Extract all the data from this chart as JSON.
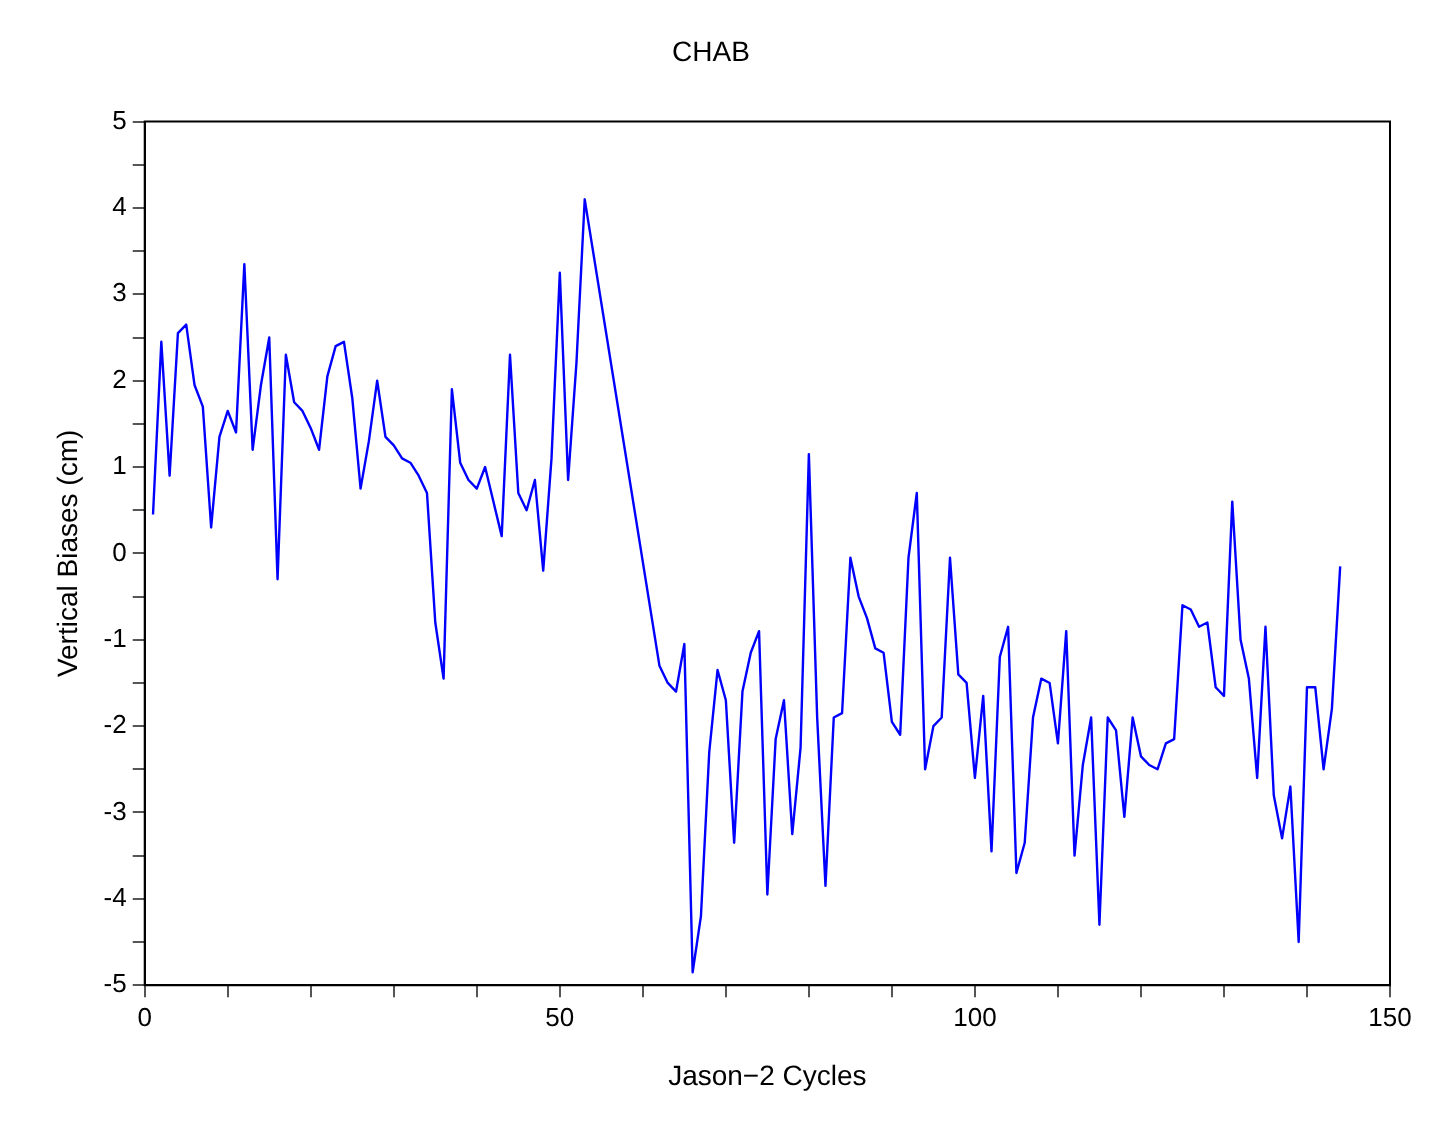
{
  "chart_data": {
    "type": "line",
    "title": "CHAB",
    "xlabel": "Jason−2 Cycles",
    "ylabel": "Vertical Biases (cm)",
    "x": [
      1,
      2,
      3,
      4,
      5,
      6,
      7,
      8,
      9,
      10,
      11,
      12,
      13,
      14,
      15,
      16,
      17,
      18,
      19,
      20,
      21,
      22,
      23,
      24,
      25,
      26,
      27,
      28,
      29,
      30,
      31,
      32,
      33,
      34,
      35,
      36,
      37,
      38,
      39,
      40,
      41,
      42,
      43,
      44,
      45,
      46,
      47,
      48,
      49,
      50,
      51,
      52,
      53,
      62,
      63,
      64,
      65,
      66,
      67,
      68,
      69,
      70,
      71,
      72,
      73,
      74,
      75,
      76,
      77,
      78,
      79,
      80,
      81,
      82,
      83,
      84,
      85,
      86,
      87,
      88,
      89,
      90,
      91,
      92,
      93,
      94,
      95,
      96,
      97,
      98,
      99,
      100,
      101,
      102,
      103,
      104,
      105,
      106,
      107,
      108,
      109,
      110,
      111,
      112,
      113,
      114,
      115,
      116,
      117,
      118,
      119,
      120,
      121,
      122,
      123,
      124,
      125,
      126,
      127,
      128,
      129,
      130,
      131,
      132,
      133,
      134,
      135,
      136,
      137,
      138,
      139,
      140,
      141,
      142,
      143,
      144
    ],
    "series": [
      {
        "color": "#0000ff",
        "values": [
          0.45,
          2.45,
          0.9,
          2.55,
          2.65,
          1.95,
          1.7,
          0.3,
          1.35,
          1.65,
          1.4,
          3.35,
          1.2,
          1.95,
          2.5,
          -0.3,
          2.3,
          1.75,
          1.65,
          1.45,
          1.2,
          2.05,
          2.4,
          2.45,
          1.8,
          0.75,
          1.3,
          2.0,
          1.35,
          1.25,
          1.1,
          1.05,
          0.9,
          0.7,
          -0.8,
          -1.45,
          1.9,
          1.05,
          0.85,
          0.75,
          1.0,
          0.6,
          0.2,
          2.3,
          0.7,
          0.5,
          0.85,
          -0.2,
          1.1,
          3.25,
          0.85,
          2.2,
          4.1,
          -1.3,
          -1.5,
          -1.6,
          -1.05,
          -4.85,
          -4.2,
          -2.3,
          -1.35,
          -1.7,
          -3.35,
          -1.6,
          -1.15,
          -0.9,
          -3.95,
          -2.15,
          -1.7,
          -3.25,
          -2.25,
          1.15,
          -1.9,
          -3.85,
          -1.9,
          -1.85,
          -0.05,
          -0.5,
          -0.75,
          -1.1,
          -1.15,
          -1.95,
          -2.1,
          -0.05,
          0.7,
          -2.5,
          -2.0,
          -1.9,
          -0.05,
          -1.4,
          -1.5,
          -2.6,
          -1.65,
          -3.45,
          -1.2,
          -0.85,
          -3.7,
          -3.35,
          -1.9,
          -1.45,
          -1.5,
          -2.2,
          -0.9,
          -3.5,
          -2.45,
          -1.9,
          -4.3,
          -1.9,
          -2.05,
          -3.05,
          -1.9,
          -2.35,
          -2.45,
          -2.5,
          -2.2,
          -2.15,
          -0.6,
          -0.65,
          -0.85,
          -0.8,
          -1.55,
          -1.65,
          0.6,
          -1.0,
          -1.45,
          -2.6,
          -0.85,
          -2.8,
          -3.3,
          -2.7,
          -4.5,
          -1.55,
          -1.55,
          -2.5,
          -1.8,
          -0.15
        ]
      }
    ],
    "xlim": [
      0,
      150
    ],
    "xticks": [
      0,
      {
        "value": 10,
        "label": null
      },
      {
        "value": 20,
        "label": null
      },
      {
        "value": 30,
        "label": null
      },
      {
        "value": 40,
        "label": null
      },
      50,
      {
        "value": 60,
        "label": null
      },
      {
        "value": 70,
        "label": null
      },
      {
        "value": 80,
        "label": null
      },
      {
        "value": 90,
        "label": null
      },
      100,
      {
        "value": 110,
        "label": null
      },
      {
        "value": 120,
        "label": null
      },
      {
        "value": 130,
        "label": null
      },
      {
        "value": 140,
        "label": null
      },
      150
    ],
    "ylim": [
      -5,
      5
    ],
    "yticks": [
      -5,
      {
        "value": -4.5,
        "label": null
      },
      -4,
      {
        "value": -3.5,
        "label": null
      },
      -3,
      {
        "value": -2.5,
        "label": null
      },
      -2,
      {
        "value": -1.5,
        "label": null
      },
      -1,
      {
        "value": -0.5,
        "label": null
      },
      0,
      {
        "value": 0.5,
        "label": null
      },
      1,
      {
        "value": 1.5,
        "label": null
      },
      2,
      {
        "value": 2.5,
        "label": null
      },
      3,
      {
        "value": 3.5,
        "label": null
      },
      4,
      {
        "value": 4.5,
        "label": null
      },
      5
    ],
    "grid": false,
    "legend": false,
    "marker": "none",
    "line_style": "solid"
  }
}
